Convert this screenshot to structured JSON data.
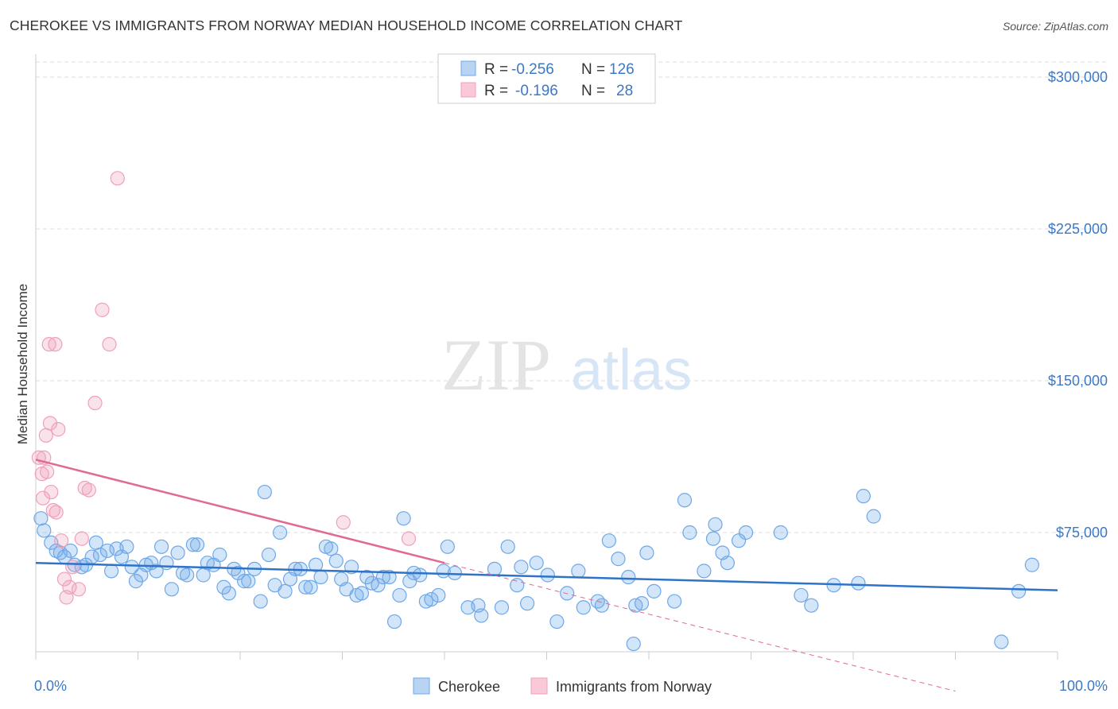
{
  "title": "CHEROKEE VS IMMIGRANTS FROM NORWAY MEDIAN HOUSEHOLD INCOME CORRELATION CHART",
  "source": "Source: ZipAtlas.com",
  "watermark": {
    "zip": "ZIP",
    "atlas": "atlas"
  },
  "colors": {
    "blue": "#6ea8e8",
    "blue_line": "#2f73c9",
    "pink": "#f0a0bb",
    "pink_line": "#e06a93",
    "text_blue": "#3b78c6"
  },
  "legend": {
    "rows": [
      {
        "r_label": "R =",
        "r_value": "-0.256",
        "n_label": "N =",
        "n_value": "126"
      },
      {
        "r_label": "R =",
        "r_value": "-0.196",
        "n_label": "N =",
        "n_value": "28"
      }
    ],
    "placement": "top-center"
  },
  "chart_data": {
    "type": "scatter",
    "title": "CHEROKEE VS IMMIGRANTS FROM NORWAY MEDIAN HOUSEHOLD INCOME CORRELATION CHART",
    "xlabel": "",
    "ylabel": "Median Household Income",
    "x_tick_labels": [
      "0.0%",
      "100.0%"
    ],
    "y_tick_labels": [
      "$75,000",
      "$150,000",
      "$225,000",
      "$300,000"
    ],
    "y_ticks": [
      75000,
      150000,
      225000,
      300000
    ],
    "xlim": [
      0,
      100
    ],
    "ylim": [
      0,
      308000
    ],
    "grid": true,
    "series": [
      {
        "name": "Cherokee",
        "color": "#6ea8e8",
        "trend": {
          "x": [
            0,
            100
          ],
          "y": [
            60000,
            46500
          ],
          "style": "solid"
        },
        "points": [
          [
            0.5,
            82000
          ],
          [
            0.8,
            76000
          ],
          [
            1.5,
            70000
          ],
          [
            2,
            66000
          ],
          [
            2.4,
            65000
          ],
          [
            2.8,
            63000
          ],
          [
            3.4,
            66000
          ],
          [
            3.8,
            59000
          ],
          [
            4.5,
            58000
          ],
          [
            4.9,
            59000
          ],
          [
            5.5,
            63000
          ],
          [
            5.9,
            70000
          ],
          [
            6.3,
            64000
          ],
          [
            7,
            66000
          ],
          [
            7.4,
            56000
          ],
          [
            7.9,
            67000
          ],
          [
            8.4,
            63000
          ],
          [
            8.9,
            68000
          ],
          [
            9.4,
            58000
          ],
          [
            9.8,
            51000
          ],
          [
            10.3,
            54000
          ],
          [
            10.8,
            59000
          ],
          [
            11.3,
            60000
          ],
          [
            11.8,
            56000
          ],
          [
            12.3,
            68000
          ],
          [
            12.8,
            60000
          ],
          [
            13.3,
            47000
          ],
          [
            13.9,
            65000
          ],
          [
            14.4,
            55000
          ],
          [
            14.8,
            54000
          ],
          [
            15.4,
            69000
          ],
          [
            15.8,
            69000
          ],
          [
            16.4,
            54000
          ],
          [
            16.8,
            60000
          ],
          [
            17.4,
            59000
          ],
          [
            18,
            64000
          ],
          [
            18.4,
            48000
          ],
          [
            18.9,
            45000
          ],
          [
            19.4,
            57000
          ],
          [
            19.8,
            55000
          ],
          [
            20.4,
            51000
          ],
          [
            20.8,
            51000
          ],
          [
            21.4,
            57000
          ],
          [
            22,
            41000
          ],
          [
            22.4,
            95000
          ],
          [
            22.8,
            64000
          ],
          [
            23.4,
            49000
          ],
          [
            23.9,
            75000
          ],
          [
            24.4,
            46000
          ],
          [
            24.9,
            52000
          ],
          [
            25.4,
            57000
          ],
          [
            25.9,
            57000
          ],
          [
            26.4,
            48000
          ],
          [
            26.9,
            48000
          ],
          [
            27.4,
            59000
          ],
          [
            27.9,
            53000
          ],
          [
            28.4,
            68000
          ],
          [
            28.9,
            67000
          ],
          [
            29.4,
            61000
          ],
          [
            29.9,
            52000
          ],
          [
            30.4,
            47000
          ],
          [
            30.9,
            58000
          ],
          [
            31.4,
            44000
          ],
          [
            31.9,
            45000
          ],
          [
            32.4,
            53000
          ],
          [
            32.9,
            50000
          ],
          [
            33.5,
            49000
          ],
          [
            34,
            53000
          ],
          [
            34.6,
            53000
          ],
          [
            35.1,
            31000
          ],
          [
            35.6,
            44000
          ],
          [
            36,
            82000
          ],
          [
            36.6,
            51000
          ],
          [
            37,
            55000
          ],
          [
            37.6,
            54000
          ],
          [
            38.2,
            41000
          ],
          [
            38.7,
            42000
          ],
          [
            39.4,
            44000
          ],
          [
            39.9,
            56000
          ],
          [
            40.3,
            68000
          ],
          [
            41,
            55000
          ],
          [
            42.3,
            38000
          ],
          [
            43.3,
            39000
          ],
          [
            43.6,
            34000
          ],
          [
            44.9,
            57000
          ],
          [
            45.6,
            38000
          ],
          [
            46.2,
            68000
          ],
          [
            47.1,
            49000
          ],
          [
            47.5,
            58000
          ],
          [
            48.1,
            40000
          ],
          [
            49,
            60000
          ],
          [
            51,
            31000
          ],
          [
            50.1,
            54000
          ],
          [
            52,
            45000
          ],
          [
            53.1,
            56000
          ],
          [
            53.6,
            38000
          ],
          [
            55,
            41000
          ],
          [
            55.4,
            39000
          ],
          [
            56.1,
            71000
          ],
          [
            57,
            62000
          ],
          [
            58,
            53000
          ],
          [
            58.5,
            20000
          ],
          [
            58.7,
            39000
          ],
          [
            59.3,
            40000
          ],
          [
            60.5,
            46000
          ],
          [
            62.5,
            41000
          ],
          [
            63.5,
            91000
          ],
          [
            64,
            75000
          ],
          [
            65.4,
            56000
          ],
          [
            66.3,
            72000
          ],
          [
            67.2,
            65000
          ],
          [
            74.9,
            44000
          ],
          [
            75.9,
            39000
          ],
          [
            78.1,
            49000
          ],
          [
            80.5,
            50000
          ],
          [
            94.5,
            21000
          ],
          [
            96.2,
            46000
          ],
          [
            97.5,
            59000
          ],
          [
            81,
            93000
          ],
          [
            66.5,
            79000
          ],
          [
            67.7,
            60000
          ],
          [
            69.5,
            75000
          ],
          [
            72.9,
            75000
          ],
          [
            82,
            83000
          ],
          [
            68.8,
            71000
          ],
          [
            59.8,
            65000
          ]
        ]
      },
      {
        "name": "Immigrants from Norway",
        "color": "#f0a0bb",
        "trend": {
          "x": [
            0,
            40
          ],
          "y": [
            111000,
            60000
          ],
          "style": "solid"
        },
        "trend_extension": {
          "x": [
            40,
            100
          ],
          "y": [
            60000,
            -16000
          ],
          "style": "dashed"
        },
        "points": [
          [
            0.3,
            112000
          ],
          [
            0.6,
            104000
          ],
          [
            0.7,
            92000
          ],
          [
            0.8,
            112000
          ],
          [
            1,
            123000
          ],
          [
            1.1,
            105000
          ],
          [
            1.3,
            168000
          ],
          [
            1.4,
            129000
          ],
          [
            1.7,
            86000
          ],
          [
            1.9,
            168000
          ],
          [
            2,
            85000
          ],
          [
            2.2,
            126000
          ],
          [
            2.5,
            71000
          ],
          [
            2.8,
            52000
          ],
          [
            3.3,
            48000
          ],
          [
            3.6,
            58000
          ],
          [
            4.2,
            47000
          ],
          [
            4.5,
            72000
          ],
          [
            4.8,
            97000
          ],
          [
            5.2,
            96000
          ],
          [
            5.8,
            139000
          ],
          [
            6.5,
            185000
          ],
          [
            7.2,
            168000
          ],
          [
            8,
            250000
          ],
          [
            30.1,
            80000
          ],
          [
            36.5,
            72000
          ],
          [
            3,
            43000
          ],
          [
            1.5,
            95000
          ]
        ]
      }
    ]
  },
  "bottom_legend": [
    "Cherokee",
    "Immigrants from Norway"
  ]
}
